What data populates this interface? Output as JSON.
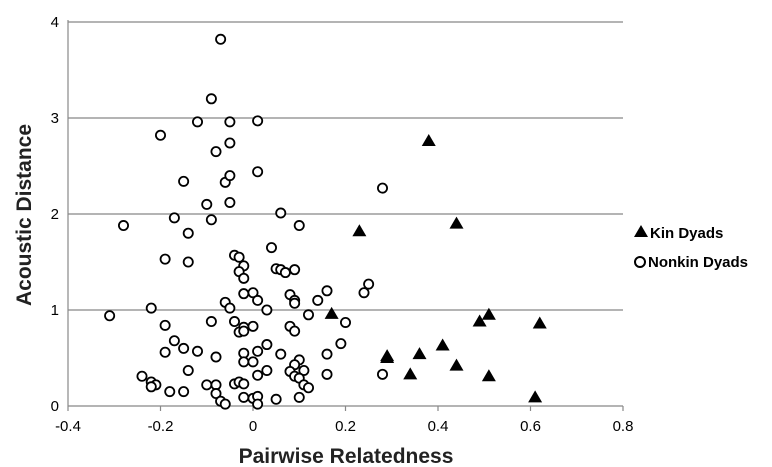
{
  "chart_data": {
    "type": "scatter",
    "xlabel": "Pairwise Relatedness",
    "ylabel": "Acoustic Distance",
    "xlim": [
      -0.4,
      0.8
    ],
    "ylim": [
      0,
      4
    ],
    "xticks": [
      "-0.4",
      "-0.2",
      "0",
      "0.2",
      "0.4",
      "0.6",
      "0.8"
    ],
    "yticks": [
      "0",
      "1",
      "2",
      "3",
      "4"
    ],
    "grid": "horizontal",
    "legend_position": "right",
    "series": [
      {
        "name": "Kin Dyads",
        "marker": "filled-triangle",
        "color": "#000000",
        "points": [
          [
            0.38,
            2.76
          ],
          [
            0.44,
            1.9
          ],
          [
            0.23,
            1.82
          ],
          [
            0.17,
            0.96
          ],
          [
            0.29,
            0.52
          ],
          [
            0.29,
            0.5
          ],
          [
            0.34,
            0.33
          ],
          [
            0.36,
            0.54
          ],
          [
            0.41,
            0.63
          ],
          [
            0.44,
            0.42
          ],
          [
            0.49,
            0.88
          ],
          [
            0.51,
            0.95
          ],
          [
            0.51,
            0.31
          ],
          [
            0.61,
            0.09
          ],
          [
            0.62,
            0.86
          ]
        ]
      },
      {
        "name": "Nonkin Dyads",
        "marker": "open-circle",
        "color": "#000000",
        "points": [
          [
            -0.07,
            3.82
          ],
          [
            -0.09,
            3.2
          ],
          [
            -0.12,
            2.96
          ],
          [
            -0.05,
            2.96
          ],
          [
            0.01,
            2.97
          ],
          [
            -0.2,
            2.82
          ],
          [
            -0.05,
            2.74
          ],
          [
            -0.08,
            2.65
          ],
          [
            -0.15,
            2.34
          ],
          [
            -0.06,
            2.33
          ],
          [
            -0.05,
            2.4
          ],
          [
            0.01,
            2.44
          ],
          [
            0.28,
            2.27
          ],
          [
            -0.1,
            2.1
          ],
          [
            -0.05,
            2.12
          ],
          [
            -0.17,
            1.96
          ],
          [
            -0.09,
            1.94
          ],
          [
            0.06,
            2.01
          ],
          [
            -0.28,
            1.88
          ],
          [
            0.1,
            1.88
          ],
          [
            -0.14,
            1.8
          ],
          [
            0.04,
            1.65
          ],
          [
            -0.19,
            1.53
          ],
          [
            -0.14,
            1.5
          ],
          [
            -0.04,
            1.57
          ],
          [
            -0.03,
            1.55
          ],
          [
            -0.02,
            1.46
          ],
          [
            -0.03,
            1.4
          ],
          [
            0.05,
            1.43
          ],
          [
            0.06,
            1.42
          ],
          [
            0.07,
            1.39
          ],
          [
            0.09,
            1.42
          ],
          [
            -0.02,
            1.33
          ],
          [
            0.25,
            1.27
          ],
          [
            0.24,
            1.18
          ],
          [
            0.16,
            1.2
          ],
          [
            -0.02,
            1.17
          ],
          [
            0.0,
            1.18
          ],
          [
            0.08,
            1.16
          ],
          [
            0.14,
            1.1
          ],
          [
            -0.06,
            1.08
          ],
          [
            0.01,
            1.1
          ],
          [
            0.09,
            1.1
          ],
          [
            0.09,
            1.07
          ],
          [
            -0.05,
            1.02
          ],
          [
            0.03,
            1.0
          ],
          [
            -0.22,
            1.02
          ],
          [
            -0.31,
            0.94
          ],
          [
            0.12,
            0.95
          ],
          [
            -0.09,
            0.88
          ],
          [
            -0.04,
            0.88
          ],
          [
            0.2,
            0.87
          ],
          [
            -0.19,
            0.84
          ],
          [
            -0.02,
            0.82
          ],
          [
            0.0,
            0.83
          ],
          [
            0.08,
            0.83
          ],
          [
            -0.03,
            0.77
          ],
          [
            -0.02,
            0.78
          ],
          [
            0.09,
            0.78
          ],
          [
            -0.17,
            0.68
          ],
          [
            0.03,
            0.64
          ],
          [
            0.19,
            0.65
          ],
          [
            -0.15,
            0.6
          ],
          [
            -0.12,
            0.57
          ],
          [
            -0.19,
            0.56
          ],
          [
            0.01,
            0.57
          ],
          [
            -0.08,
            0.51
          ],
          [
            -0.02,
            0.55
          ],
          [
            0.06,
            0.54
          ],
          [
            0.16,
            0.54
          ],
          [
            0.1,
            0.48
          ],
          [
            0.09,
            0.43
          ],
          [
            -0.02,
            0.46
          ],
          [
            0.0,
            0.46
          ],
          [
            0.08,
            0.36
          ],
          [
            0.11,
            0.37
          ],
          [
            -0.14,
            0.37
          ],
          [
            0.16,
            0.33
          ],
          [
            0.28,
            0.33
          ],
          [
            0.03,
            0.37
          ],
          [
            -0.24,
            0.31
          ],
          [
            0.01,
            0.32
          ],
          [
            0.09,
            0.31
          ],
          [
            0.1,
            0.29
          ],
          [
            -0.22,
            0.25
          ],
          [
            -0.21,
            0.22
          ],
          [
            -0.22,
            0.2
          ],
          [
            -0.1,
            0.22
          ],
          [
            -0.08,
            0.22
          ],
          [
            -0.04,
            0.23
          ],
          [
            -0.03,
            0.25
          ],
          [
            -0.02,
            0.23
          ],
          [
            0.11,
            0.22
          ],
          [
            0.12,
            0.19
          ],
          [
            -0.18,
            0.15
          ],
          [
            -0.15,
            0.15
          ],
          [
            -0.08,
            0.13
          ],
          [
            -0.02,
            0.09
          ],
          [
            0.0,
            0.08
          ],
          [
            0.01,
            0.1
          ],
          [
            0.05,
            0.07
          ],
          [
            0.1,
            0.09
          ],
          [
            -0.07,
            0.05
          ],
          [
            -0.06,
            0.02
          ],
          [
            0.01,
            0.02
          ]
        ]
      }
    ]
  }
}
